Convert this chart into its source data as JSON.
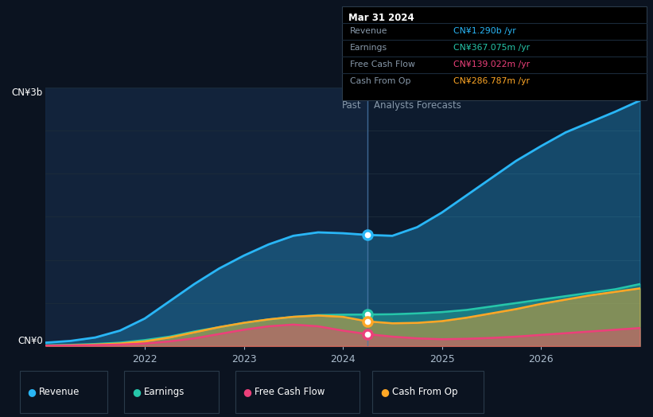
{
  "bg_color": "#0b1320",
  "plot_bg_color": "#0d1b2e",
  "grid_color": "#1a2a3a",
  "title_box": {
    "date": "Mar 31 2024",
    "revenue_label": "Revenue",
    "revenue_val": "CN¥1.290b /yr",
    "earnings_label": "Earnings",
    "earnings_val": "CN¥367.075m /yr",
    "fcf_label": "Free Cash Flow",
    "fcf_val": "CN¥139.022m /yr",
    "cashfromop_label": "Cash From Op",
    "cashfromop_val": "CN¥286.787m /yr"
  },
  "ylabel_top": "CN¥3b",
  "ylabel_bottom": "CN¥0",
  "past_label": "Past",
  "forecast_label": "Analysts Forecasts",
  "split_x": 2024.25,
  "legend": [
    "Revenue",
    "Earnings",
    "Free Cash Flow",
    "Cash From Op"
  ],
  "colors": {
    "revenue": "#29b6f6",
    "earnings": "#26c6aa",
    "fcf": "#ec407a",
    "cashfromop": "#ffa726"
  },
  "xlim": [
    2021.0,
    2027.0
  ],
  "ylim": [
    0,
    3.0
  ],
  "x_ticks": [
    2022,
    2023,
    2024,
    2025,
    2026
  ],
  "revenue": {
    "x": [
      2021.0,
      2021.25,
      2021.5,
      2021.75,
      2022.0,
      2022.25,
      2022.5,
      2022.75,
      2023.0,
      2023.25,
      2023.5,
      2023.75,
      2024.0,
      2024.25,
      2024.5,
      2024.75,
      2025.0,
      2025.25,
      2025.5,
      2025.75,
      2026.0,
      2026.25,
      2026.5,
      2026.75,
      2027.0
    ],
    "y": [
      0.04,
      0.06,
      0.1,
      0.18,
      0.32,
      0.52,
      0.72,
      0.9,
      1.05,
      1.18,
      1.28,
      1.32,
      1.31,
      1.29,
      1.28,
      1.38,
      1.55,
      1.75,
      1.95,
      2.15,
      2.32,
      2.48,
      2.6,
      2.72,
      2.85
    ]
  },
  "earnings": {
    "x": [
      2021.0,
      2021.25,
      2021.5,
      2021.75,
      2022.0,
      2022.25,
      2022.5,
      2022.75,
      2023.0,
      2023.25,
      2023.5,
      2023.75,
      2024.0,
      2024.25,
      2024.5,
      2024.75,
      2025.0,
      2025.25,
      2025.5,
      2025.75,
      2026.0,
      2026.25,
      2026.5,
      2026.75,
      2027.0
    ],
    "y": [
      0.01,
      0.015,
      0.025,
      0.04,
      0.07,
      0.11,
      0.17,
      0.22,
      0.27,
      0.31,
      0.34,
      0.36,
      0.365,
      0.367,
      0.37,
      0.38,
      0.395,
      0.42,
      0.46,
      0.5,
      0.54,
      0.58,
      0.62,
      0.66,
      0.72
    ]
  },
  "fcf": {
    "x": [
      2021.0,
      2021.25,
      2021.5,
      2021.75,
      2022.0,
      2022.25,
      2022.5,
      2022.75,
      2023.0,
      2023.25,
      2023.5,
      2023.75,
      2024.0,
      2024.25,
      2024.5,
      2024.75,
      2025.0,
      2025.25,
      2025.5,
      2025.75,
      2026.0,
      2026.25,
      2026.5,
      2026.75,
      2027.0
    ],
    "y": [
      0.005,
      0.007,
      0.012,
      0.018,
      0.03,
      0.055,
      0.09,
      0.14,
      0.19,
      0.23,
      0.25,
      0.23,
      0.18,
      0.139,
      0.11,
      0.09,
      0.08,
      0.085,
      0.095,
      0.11,
      0.13,
      0.15,
      0.17,
      0.19,
      0.21
    ]
  },
  "cashfromop": {
    "x": [
      2021.0,
      2021.25,
      2021.5,
      2021.75,
      2022.0,
      2022.25,
      2022.5,
      2022.75,
      2023.0,
      2023.25,
      2023.5,
      2023.75,
      2024.0,
      2024.25,
      2024.5,
      2024.75,
      2025.0,
      2025.25,
      2025.5,
      2025.75,
      2026.0,
      2026.25,
      2026.5,
      2026.75,
      2027.0
    ],
    "y": [
      0.006,
      0.01,
      0.018,
      0.03,
      0.055,
      0.1,
      0.16,
      0.22,
      0.27,
      0.31,
      0.34,
      0.355,
      0.34,
      0.287,
      0.265,
      0.27,
      0.29,
      0.33,
      0.38,
      0.43,
      0.49,
      0.54,
      0.59,
      0.63,
      0.67
    ]
  }
}
